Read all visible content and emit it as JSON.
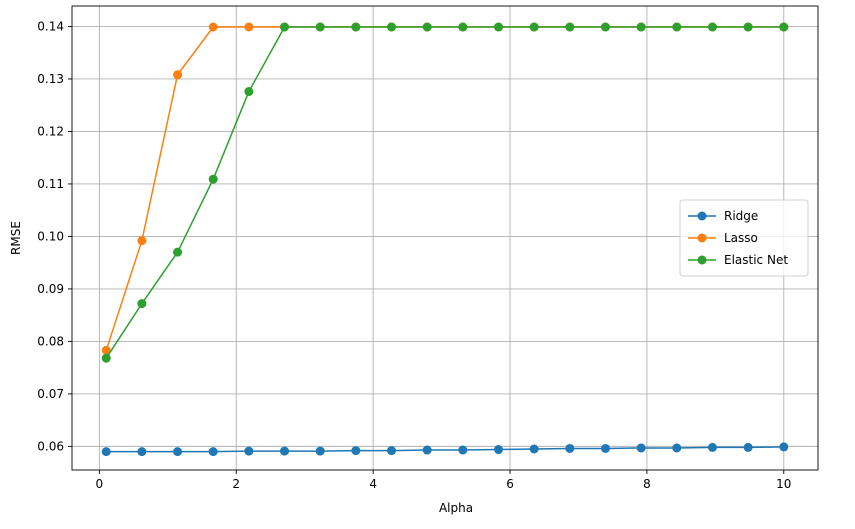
{
  "chart_data": {
    "type": "line",
    "title": "",
    "xlabel": "Alpha",
    "ylabel": "RMSE",
    "xlim": [
      -0.4,
      10.5
    ],
    "ylim": [
      0.0555,
      0.1439
    ],
    "xticks": [
      0,
      2,
      4,
      6,
      8,
      10
    ],
    "xtick_labels": [
      "0",
      "2",
      "4",
      "6",
      "8",
      "10"
    ],
    "yticks": [
      0.06,
      0.07,
      0.08,
      0.09,
      0.1,
      0.11,
      0.12,
      0.13,
      0.14
    ],
    "ytick_labels": [
      "0.06",
      "0.07",
      "0.08",
      "0.09",
      "0.10",
      "0.11",
      "0.12",
      "0.13",
      "0.14"
    ],
    "grid": true,
    "legend_position": "center-right",
    "x": [
      0.1,
      0.6210526,
      1.1421053,
      1.6631579,
      2.1842105,
      2.7052632,
      3.2263158,
      3.7473684,
      4.2684211,
      4.7894737,
      5.3105263,
      5.8315789,
      6.3526316,
      6.8736842,
      7.3947368,
      7.9157895,
      8.4368421,
      8.9578947,
      9.4789474,
      10.0
    ],
    "series": [
      {
        "name": "Ridge",
        "color": "#1f77b4",
        "values": [
          0.059,
          0.059,
          0.059,
          0.059,
          0.0591,
          0.0591,
          0.0591,
          0.0592,
          0.0592,
          0.0593,
          0.0593,
          0.0594,
          0.0595,
          0.0596,
          0.0596,
          0.0597,
          0.0597,
          0.0598,
          0.0598,
          0.0599
        ]
      },
      {
        "name": "Lasso",
        "color": "#ff7f0e",
        "values": [
          0.0783,
          0.0992,
          0.1308,
          0.1399,
          0.1399,
          0.1399,
          0.1399,
          0.1399,
          0.1399,
          0.1399,
          0.1399,
          0.1399,
          0.1399,
          0.1399,
          0.1399,
          0.1399,
          0.1399,
          0.1399,
          0.1399,
          0.1399
        ]
      },
      {
        "name": "Elastic Net",
        "color": "#2ca02c",
        "values": [
          0.0768,
          0.0872,
          0.097,
          0.1109,
          0.1276,
          0.1399,
          0.1399,
          0.1399,
          0.1399,
          0.1399,
          0.1399,
          0.1399,
          0.1399,
          0.1399,
          0.1399,
          0.1399,
          0.1399,
          0.1399,
          0.1399,
          0.1399
        ]
      }
    ]
  }
}
